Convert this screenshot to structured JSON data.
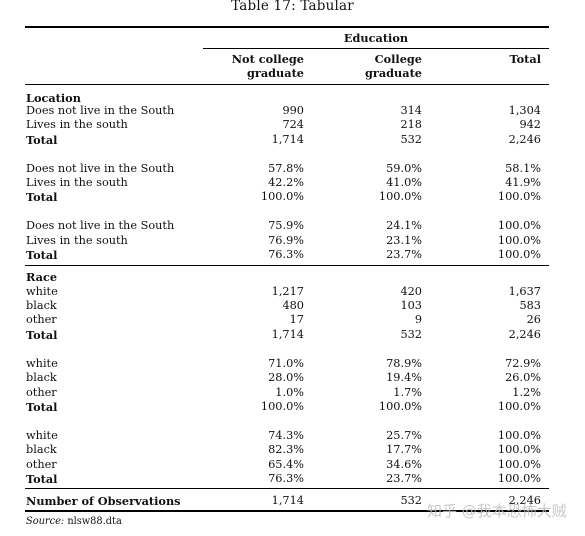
{
  "caption": "Table 17: Tabular",
  "header": {
    "group": "Education",
    "col1": [
      "Not college",
      "graduate"
    ],
    "col2": [
      "College",
      "graduate"
    ],
    "col3": "Total"
  },
  "rows": [
    {
      "label": "Location",
      "kind": "section"
    },
    {
      "label": "Does not live in the South",
      "v": [
        "990",
        "314",
        "1,304"
      ]
    },
    {
      "label": "Lives in the south",
      "v": [
        "724",
        "218",
        "942"
      ]
    },
    {
      "label": "Total",
      "v": [
        "1,714",
        "532",
        "2,246"
      ],
      "bold": true
    },
    {
      "label": "Does not live in the South",
      "v": [
        "57.8%",
        "59.0%",
        "58.1%"
      ]
    },
    {
      "label": "Lives in the south",
      "v": [
        "42.2%",
        "41.0%",
        "41.9%"
      ]
    },
    {
      "label": "Total",
      "v": [
        "100.0%",
        "100.0%",
        "100.0%"
      ],
      "bold": true
    },
    {
      "label": "Does not live in the South",
      "v": [
        "75.9%",
        "24.1%",
        "100.0%"
      ]
    },
    {
      "label": "Lives in the south",
      "v": [
        "76.9%",
        "23.1%",
        "100.0%"
      ]
    },
    {
      "label": "Total",
      "v": [
        "76.3%",
        "23.7%",
        "100.0%"
      ],
      "bold": true
    },
    {
      "label": "Race",
      "kind": "section"
    },
    {
      "label": "white",
      "v": [
        "1,217",
        "420",
        "1,637"
      ]
    },
    {
      "label": "black",
      "v": [
        "480",
        "103",
        "583"
      ]
    },
    {
      "label": "other",
      "v": [
        "17",
        "9",
        "26"
      ]
    },
    {
      "label": "Total",
      "v": [
        "1,714",
        "532",
        "2,246"
      ],
      "bold": true
    },
    {
      "label": "white",
      "v": [
        "71.0%",
        "78.9%",
        "72.9%"
      ]
    },
    {
      "label": "black",
      "v": [
        "28.0%",
        "19.4%",
        "26.0%"
      ]
    },
    {
      "label": "other",
      "v": [
        "1.0%",
        "1.7%",
        "1.2%"
      ]
    },
    {
      "label": "Total",
      "v": [
        "100.0%",
        "100.0%",
        "100.0%"
      ],
      "bold": true
    },
    {
      "label": "white",
      "v": [
        "74.3%",
        "25.7%",
        "100.0%"
      ]
    },
    {
      "label": "black",
      "v": [
        "82.3%",
        "17.7%",
        "100.0%"
      ]
    },
    {
      "label": "other",
      "v": [
        "65.4%",
        "34.6%",
        "100.0%"
      ]
    },
    {
      "label": "Total",
      "v": [
        "76.3%",
        "23.7%",
        "100.0%"
      ],
      "bold": true
    },
    {
      "label": "Number of Observations",
      "v": [
        "1,714",
        "532",
        "2,246"
      ],
      "bold": true
    }
  ],
  "source": {
    "label": "Source:",
    "file": "nlsw88.dta"
  },
  "watermark": "知乎 @我本恐怖大贼"
}
